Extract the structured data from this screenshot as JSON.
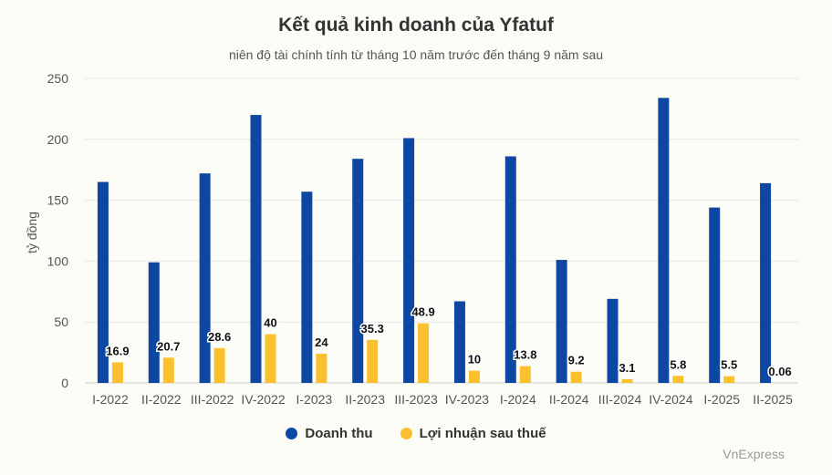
{
  "title": "Kết quả kinh doanh của Yfatuf",
  "subtitle": "niên độ tài chính tính từ tháng 10 năm trước đến tháng 9 năm sau",
  "credit": "VnExpress",
  "chart_data": {
    "type": "bar",
    "categories": [
      "I-2022",
      "II-2022",
      "III-2022",
      "IV-2022",
      "I-2023",
      "II-2023",
      "III-2023",
      "IV-2023",
      "I-2024",
      "II-2024",
      "III-2024",
      "IV-2024",
      "I-2025",
      "II-2025"
    ],
    "series": [
      {
        "name": "Doanh thu",
        "color": "#0d47a1",
        "values": [
          165,
          99,
          172,
          220,
          157,
          184,
          201,
          67,
          186,
          101,
          69,
          234,
          144,
          164
        ],
        "labels": false
      },
      {
        "name": "Lợi nhuận sau thuế",
        "color": "#fbc02d",
        "values": [
          16.9,
          20.7,
          28.6,
          40,
          24,
          35.3,
          48.9,
          10,
          13.8,
          9.2,
          3.1,
          5.8,
          5.5,
          0.06
        ],
        "value_labels": [
          "16.9",
          "20.7",
          "28.6",
          "40",
          "24",
          "35.3",
          "48.9",
          "10",
          "13.8",
          "9.2",
          "3.1",
          "5.8",
          "5.5",
          "0.06"
        ],
        "labels": true
      }
    ],
    "ylabel": "tỷ đồng",
    "xlabel": "",
    "ylim": [
      0,
      250
    ],
    "yticks": [
      "0",
      "50",
      "100",
      "150",
      "200",
      "250"
    ],
    "grid": true,
    "legend": "bottom-center"
  }
}
